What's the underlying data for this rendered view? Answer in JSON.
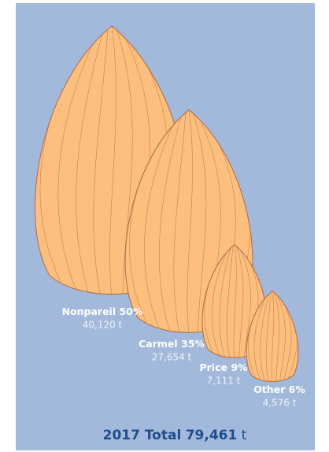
{
  "chart_data": {
    "type": "pictorial",
    "categories": [
      "Nonpareil",
      "Carmel",
      "Price",
      "Other"
    ],
    "values": [
      50,
      35,
      9,
      6
    ],
    "value_labels": [
      "50%",
      "35%",
      "9%",
      "6%"
    ],
    "tonnes": [
      40120,
      27654,
      7111,
      4576
    ],
    "tonne_labels": [
      "40,120 t",
      "27,654 t",
      "7,111 t",
      "4,576 t"
    ],
    "color": "#fdbf7e",
    "title": "2017 Total",
    "total": {
      "value": 79461,
      "label": "79,461",
      "unit": "t"
    }
  }
}
